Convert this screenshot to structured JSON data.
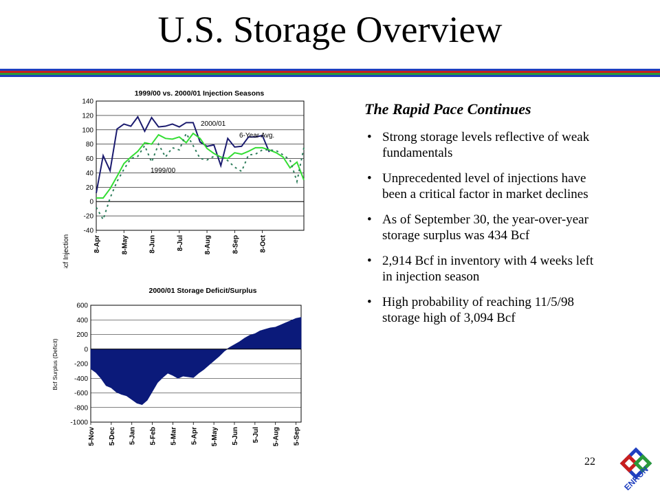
{
  "slide": {
    "title": "U.S. Storage Overview",
    "page_number": "22",
    "logo_text": "ENRON",
    "rule_colors": [
      "#1f3fbf",
      "#c81e1e",
      "#2a9a3a",
      "#1f3fbf"
    ]
  },
  "text_panel": {
    "heading": "The Rapid Pace Continues",
    "bullets": [
      "Strong storage levels reflective of weak fundamentals",
      "Unprecedented level of injections have been a critical factor in market declines",
      "As of September 30, the year-over-year storage surplus was 434 Bcf",
      "2,914 Bcf in inventory with 4 weeks left in injection season",
      "High probability of reaching 11/5/98 storage high of 3,094 Bcf"
    ]
  },
  "chart_data": [
    {
      "type": "line",
      "title": "1999/00 vs. 2000/01 Injection Seasons",
      "ylabel": "Bcf Injection",
      "ylim": [
        -40,
        140
      ],
      "yticks": [
        -40,
        -20,
        0,
        20,
        40,
        60,
        80,
        100,
        120,
        140
      ],
      "xtick_labels": [
        "8-Apr",
        "8-May",
        "8-Jun",
        "8-Jul",
        "8-Aug",
        "8-Sep",
        "8-Oct"
      ],
      "xtick_index": [
        0,
        4,
        8,
        12,
        16,
        20,
        24
      ],
      "grid": true,
      "annotations": [
        "2000/01",
        "6-Year Avg.",
        "1999/00"
      ],
      "series": [
        {
          "name": "2000/01",
          "color": "#1a1a6e",
          "style": "solid",
          "values": [
            12,
            64,
            43,
            101,
            108,
            105,
            118,
            98,
            117,
            104,
            105,
            108,
            104,
            110,
            110,
            83,
            77,
            79,
            50,
            88,
            76,
            77,
            90,
            90,
            92,
            69
          ]
        },
        {
          "name": "6-Year Avg.",
          "color": "#33dd33",
          "style": "solid",
          "values": [
            5,
            5,
            18,
            35,
            53,
            62,
            70,
            82,
            80,
            93,
            88,
            87,
            90,
            82,
            95,
            88,
            74,
            67,
            62,
            60,
            68,
            66,
            70,
            75,
            75,
            72,
            68,
            62,
            47,
            55,
            30
          ]
        },
        {
          "name": "1999/00",
          "color": "#2e7d5b",
          "style": "dashed",
          "values": [
            -8,
            -25,
            5,
            28,
            45,
            60,
            63,
            78,
            55,
            80,
            62,
            75,
            72,
            95,
            78,
            60,
            58,
            63,
            63,
            57,
            48,
            42,
            65,
            66,
            72,
            72,
            71,
            65,
            58,
            28,
            75
          ]
        }
      ]
    },
    {
      "type": "area",
      "title": "2000/01 Storage Deficit/Surplus",
      "ylabel": "Bcf Surplus (Deficit)",
      "ylim": [
        -1000,
        600
      ],
      "yticks": [
        -1000,
        -800,
        -600,
        -400,
        -200,
        0,
        200,
        400,
        600
      ],
      "xtick_labels": [
        "5-Nov",
        "5-Dec",
        "5-Jan",
        "5-Feb",
        "5-Mar",
        "5-Apr",
        "5-May",
        "5-Jun",
        "5-Jul",
        "5-Aug",
        "5-Sep"
      ],
      "xtick_index": [
        0,
        4,
        8,
        12,
        16,
        20,
        24,
        28,
        32,
        36,
        40
      ],
      "grid": true,
      "fill_color": "#0b1a7a",
      "series": [
        {
          "name": "",
          "values": [
            -270,
            -320,
            -400,
            -500,
            -530,
            -590,
            -620,
            -640,
            -690,
            -740,
            -760,
            -700,
            -580,
            -460,
            -390,
            -330,
            -360,
            -400,
            -370,
            -380,
            -390,
            -330,
            -280,
            -220,
            -160,
            -100,
            -30,
            20,
            60,
            100,
            150,
            190,
            210,
            250,
            270,
            290,
            300,
            330,
            360,
            390,
            420,
            434
          ]
        }
      ]
    }
  ]
}
